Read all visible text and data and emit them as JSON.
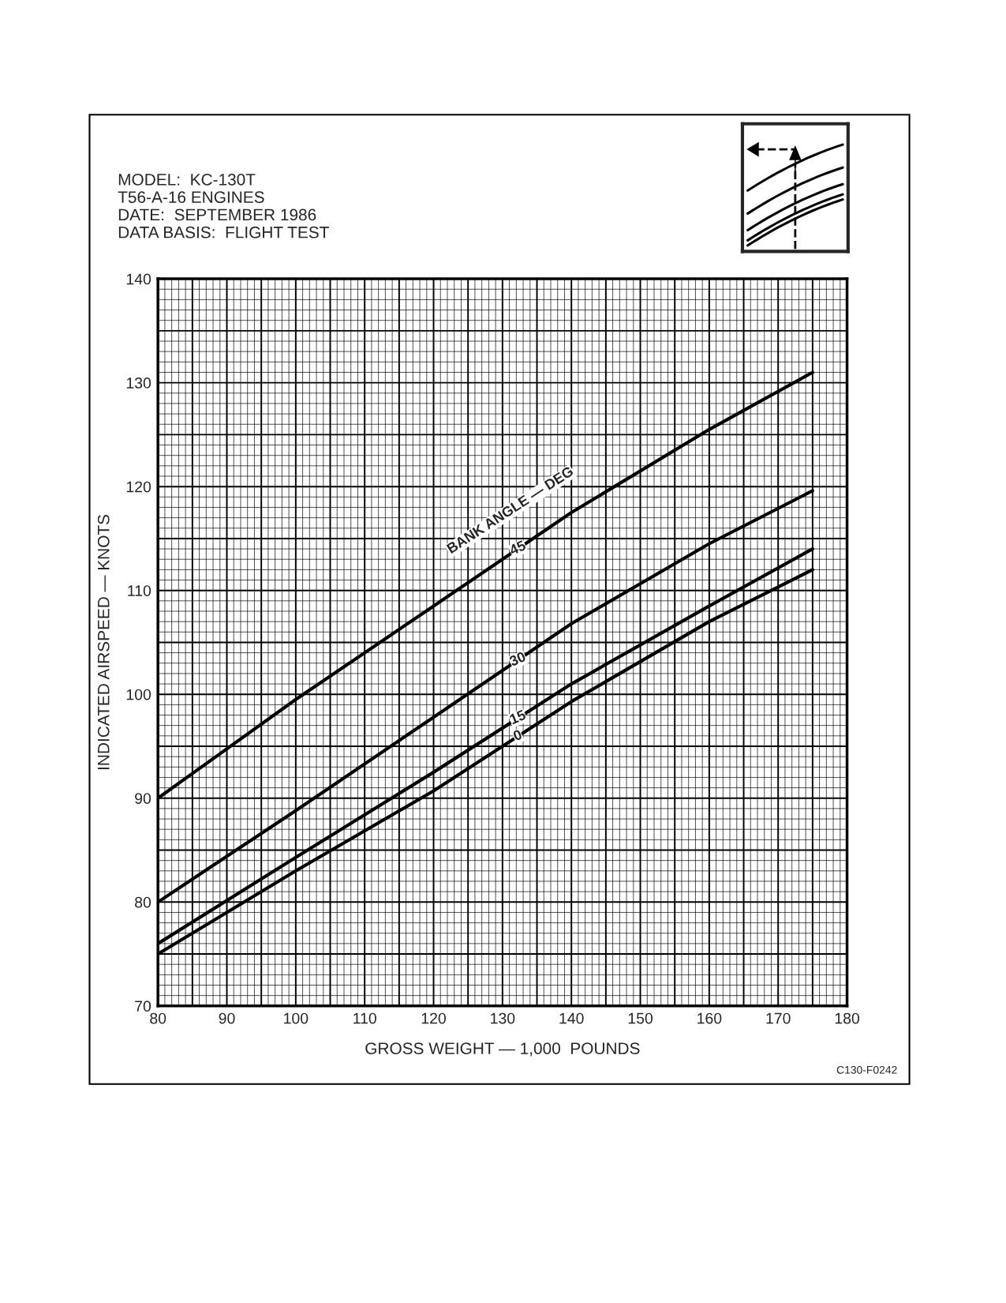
{
  "chart_data": {
    "type": "line",
    "xlabel": "GROSS WEIGHT — 1,000  POUNDS",
    "ylabel": "INDICATED AIRSPEED — KNOTS",
    "annotations": [
      "MODEL:  KC-130T",
      "T56-A-16 ENGINES",
      "DATE:  SEPTEMBER 1986",
      "DATA BASIS:  FLIGHT TEST",
      "BANK ANGLE — DEG",
      "C130-F0242"
    ],
    "x": [
      80,
      100,
      120,
      140,
      160,
      175
    ],
    "series": [
      {
        "name": "45",
        "color": "#000000",
        "values": [
          90,
          99.5,
          108.5,
          117.5,
          125.5,
          131
        ]
      },
      {
        "name": "30",
        "color": "#000000",
        "values": [
          80,
          88.8,
          97.8,
          106.8,
          114.5,
          119.6
        ]
      },
      {
        "name": "15",
        "color": "#000000",
        "values": [
          76,
          84.3,
          92.5,
          101,
          108.5,
          114
        ]
      },
      {
        "name": "0",
        "color": "#000000",
        "values": [
          75,
          83,
          90.7,
          99.3,
          107,
          112
        ]
      }
    ],
    "xlim": [
      80,
      180
    ],
    "xticks": [
      80,
      90,
      100,
      110,
      120,
      130,
      140,
      150,
      160,
      170,
      180
    ],
    "ylim": [
      70,
      140
    ],
    "yticks": [
      70,
      80,
      90,
      100,
      110,
      120,
      130,
      140
    ],
    "grid": true,
    "legend": false,
    "marker": "none",
    "line_style": "solid"
  }
}
